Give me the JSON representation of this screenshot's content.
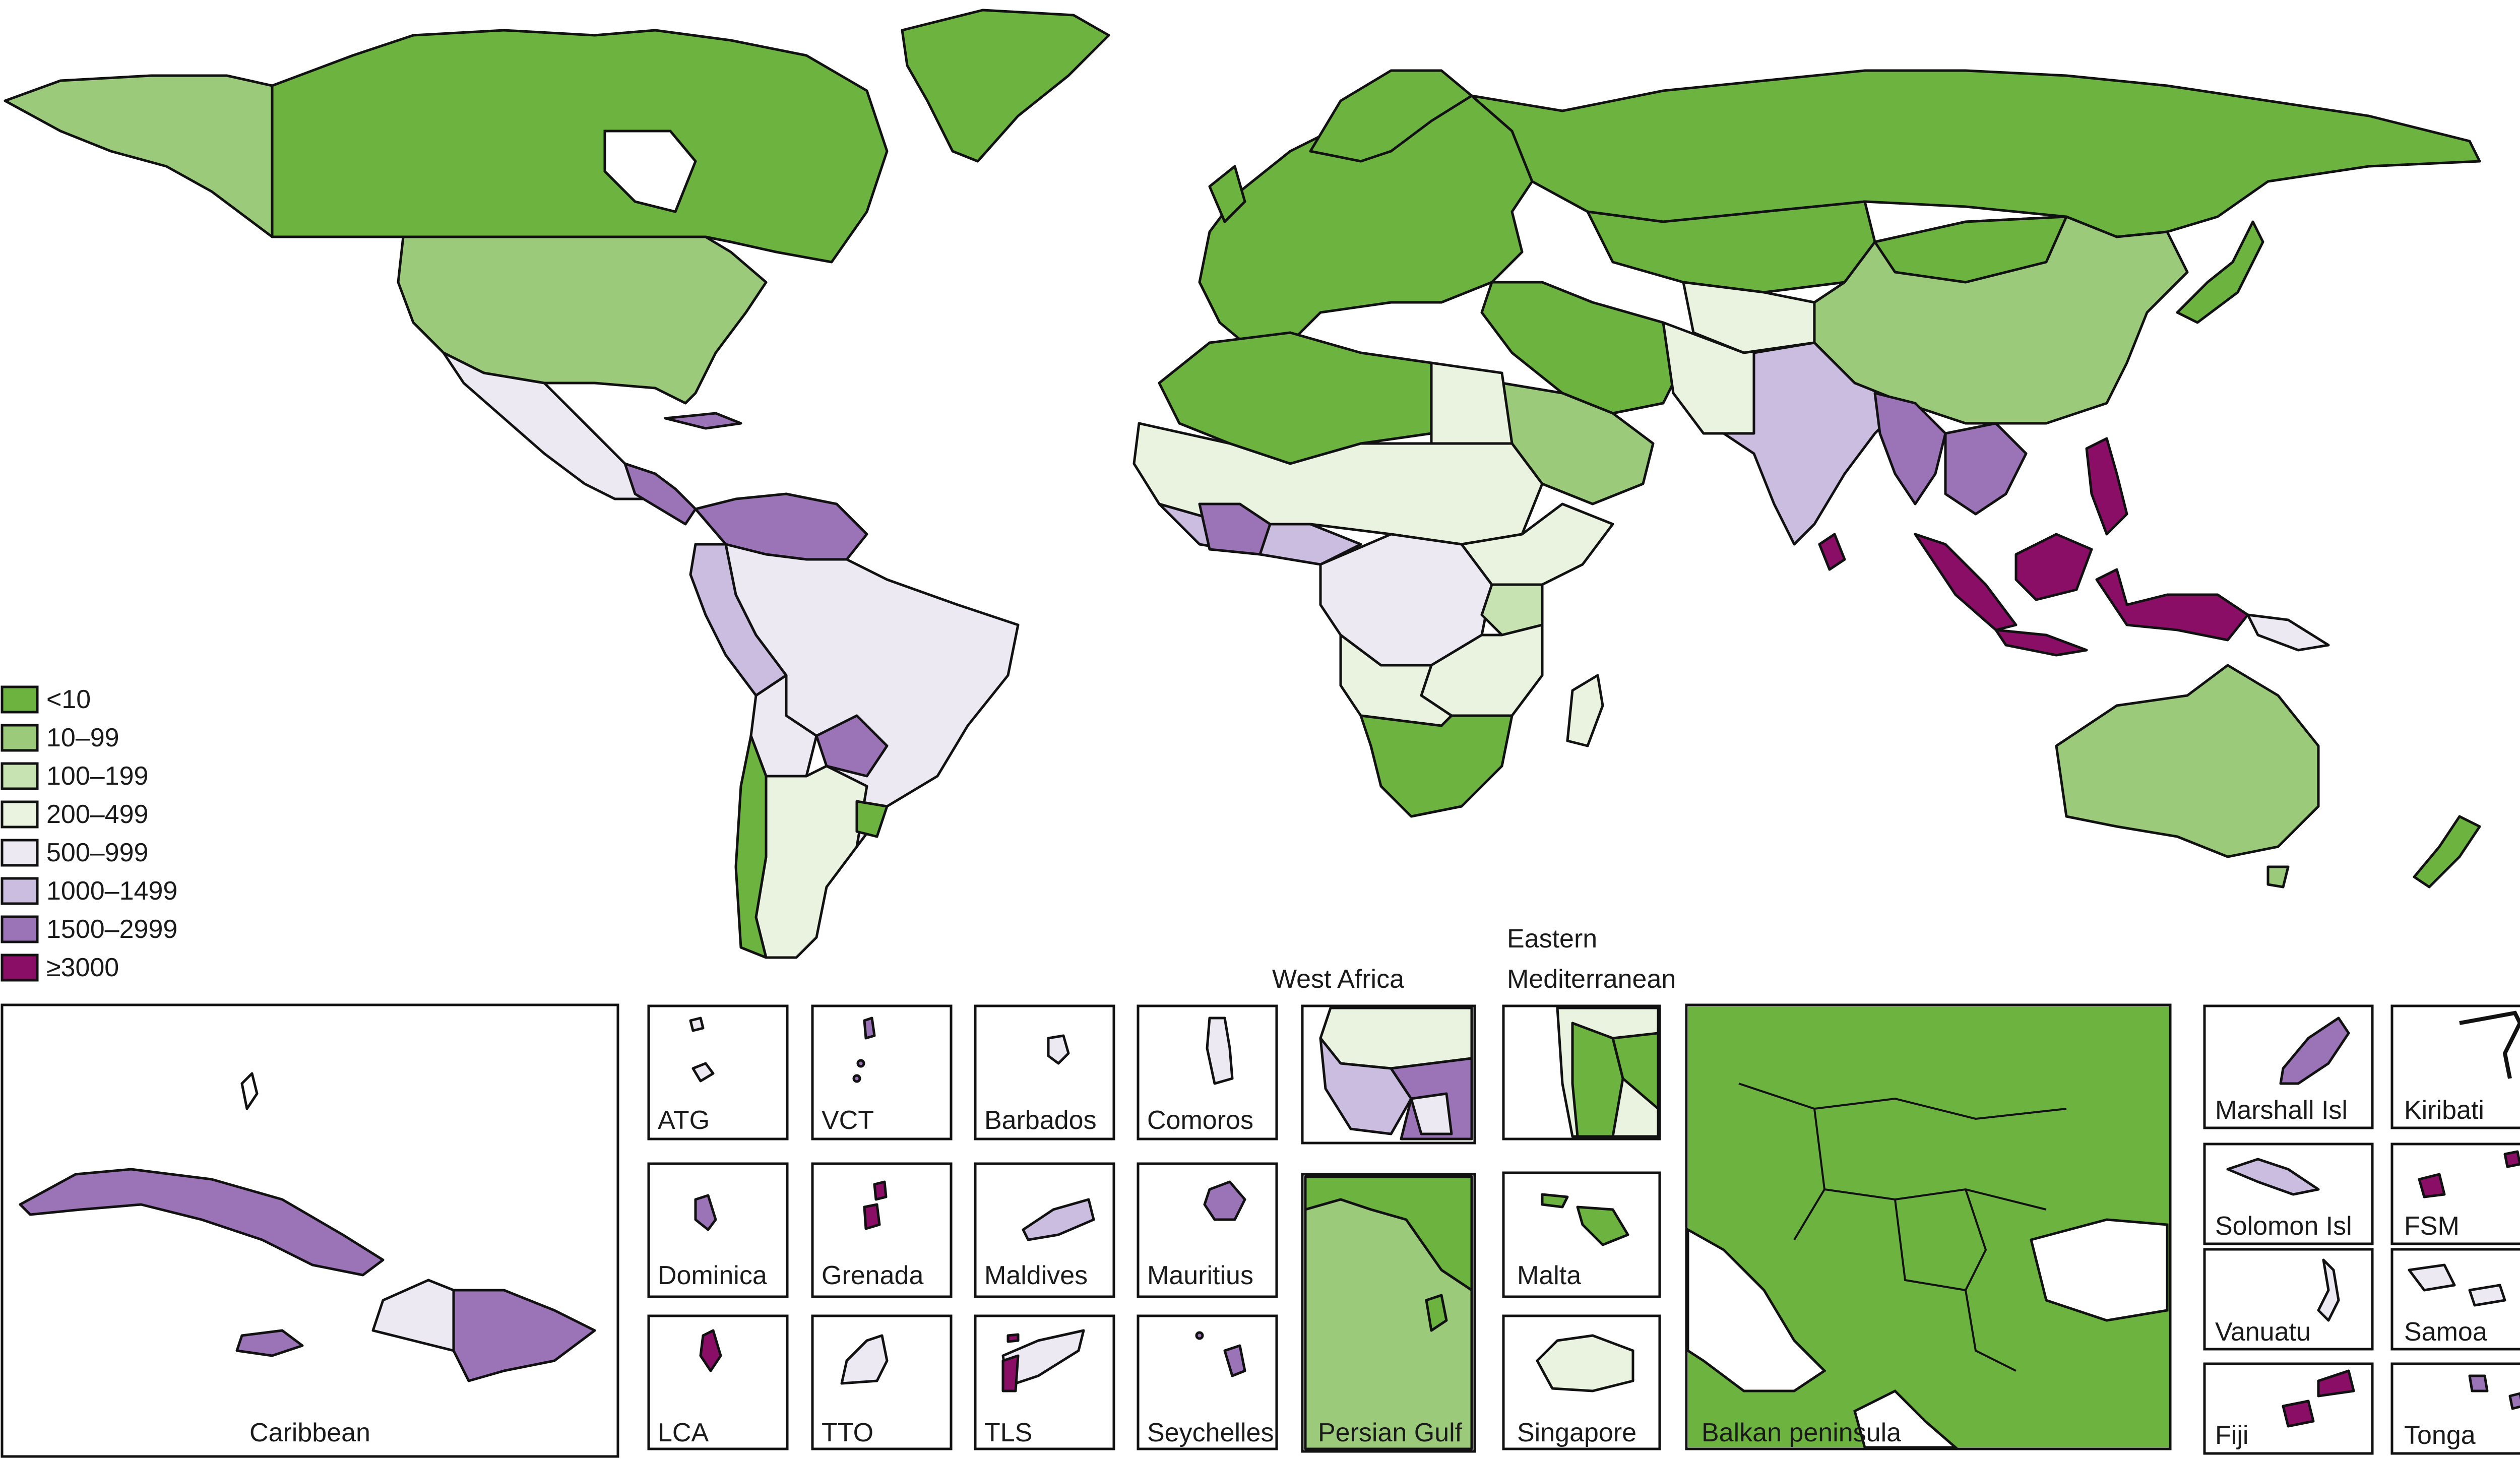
{
  "legend": {
    "items": [
      {
        "label": "<10",
        "color": "#6db33f"
      },
      {
        "label": "10–99",
        "color": "#9cca7b"
      },
      {
        "label": "100–199",
        "color": "#c8e3b2"
      },
      {
        "label": "200–499",
        "color": "#e9f3e0"
      },
      {
        "label": "500–999",
        "color": "#ece9f3"
      },
      {
        "label": "1000–1499",
        "color": "#cbbde0"
      },
      {
        "label": "1500–2999",
        "color": "#9a74b6"
      },
      {
        "label": "≥3000",
        "color": "#8a0d66"
      }
    ]
  },
  "insets": {
    "caribbean": "Caribbean",
    "atg": "ATG",
    "vct": "VCT",
    "barbados": "Barbados",
    "comoros": "Comoros",
    "dominica": "Dominica",
    "grenada": "Grenada",
    "maldives": "Maldives",
    "mauritius": "Mauritius",
    "lca": "LCA",
    "tto": "TTO",
    "tls": "TLS",
    "seychelles": "Seychelles",
    "west_africa": "West Africa",
    "eastern_med_1": "Eastern",
    "eastern_med_2": "Mediterranean",
    "persian_gulf": "Persian Gulf",
    "malta": "Malta",
    "singapore": "Singapore",
    "balkan": "Balkan peninsula",
    "marshall": "Marshall Isl",
    "kiribati": "Kiribati",
    "solomon": "Solomon Isl",
    "fsm": "FSM",
    "vanuatu": "Vanuatu",
    "samoa": "Samoa",
    "fiji": "Fiji",
    "tonga": "Tonga"
  }
}
